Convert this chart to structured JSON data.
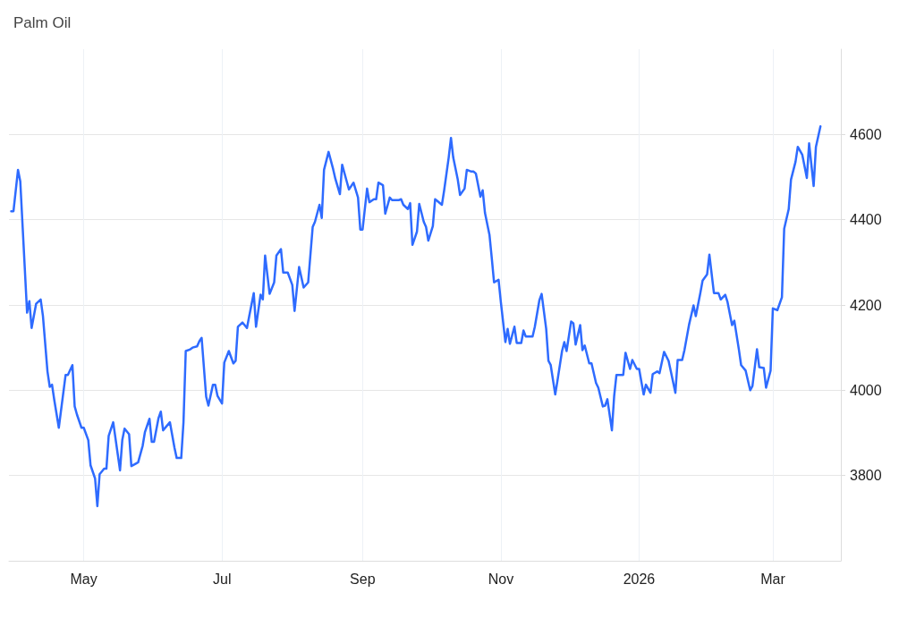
{
  "chart_data": {
    "type": "line",
    "title": "Palm Oil",
    "x": [
      "2025-03-30",
      "2025-03-31",
      "2025-04-02",
      "2025-04-03",
      "2025-04-06",
      "2025-04-07",
      "2025-04-08",
      "2025-04-10",
      "2025-04-12",
      "2025-04-13",
      "2025-04-15",
      "2025-04-16",
      "2025-04-17",
      "2025-04-18",
      "2025-04-20",
      "2025-04-23",
      "2025-04-24",
      "2025-04-26",
      "2025-04-27",
      "2025-04-28",
      "2025-04-30",
      "2025-05-01",
      "2025-05-03",
      "2025-05-04",
      "2025-05-06",
      "2025-05-07",
      "2025-05-08",
      "2025-05-10",
      "2025-05-11",
      "2025-05-12",
      "2025-05-14",
      "2025-05-17",
      "2025-05-18",
      "2025-05-19",
      "2025-05-21",
      "2025-05-22",
      "2025-05-24",
      "2025-05-25",
      "2025-05-27",
      "2025-05-28",
      "2025-05-30",
      "2025-05-31",
      "2025-06-01",
      "2025-06-03",
      "2025-06-04",
      "2025-06-05",
      "2025-06-08",
      "2025-06-10",
      "2025-06-11",
      "2025-06-13",
      "2025-06-14",
      "2025-06-15",
      "2025-06-17",
      "2025-06-18",
      "2025-06-20",
      "2025-06-21",
      "2025-06-22",
      "2025-06-24",
      "2025-06-25",
      "2025-06-27",
      "2025-06-28",
      "2025-06-29",
      "2025-07-01",
      "2025-07-02",
      "2025-07-04",
      "2025-07-06",
      "2025-07-07",
      "2025-07-08",
      "2025-07-10",
      "2025-07-12",
      "2025-07-13",
      "2025-07-15",
      "2025-07-16",
      "2025-07-18",
      "2025-07-19",
      "2025-07-20",
      "2025-07-22",
      "2025-07-24",
      "2025-07-25",
      "2025-07-27",
      "2025-07-28",
      "2025-07-30",
      "2025-08-01",
      "2025-08-02",
      "2025-08-04",
      "2025-08-06",
      "2025-08-08",
      "2025-08-10",
      "2025-08-11",
      "2025-08-13",
      "2025-08-14",
      "2025-08-15",
      "2025-08-17",
      "2025-08-19",
      "2025-08-20",
      "2025-08-22",
      "2025-08-23",
      "2025-08-25",
      "2025-08-26",
      "2025-08-28",
      "2025-08-30",
      "2025-08-31",
      "2025-09-01",
      "2025-09-03",
      "2025-09-04",
      "2025-09-06",
      "2025-09-07",
      "2025-09-08",
      "2025-09-10",
      "2025-09-11",
      "2025-09-13",
      "2025-09-14",
      "2025-09-17",
      "2025-09-18",
      "2025-09-19",
      "2025-09-21",
      "2025-09-22",
      "2025-09-23",
      "2025-09-25",
      "2025-09-26",
      "2025-09-28",
      "2025-09-29",
      "2025-09-30",
      "2025-10-02",
      "2025-10-03",
      "2025-10-04",
      "2025-10-06",
      "2025-10-07",
      "2025-10-09",
      "2025-10-10",
      "2025-10-11",
      "2025-10-13",
      "2025-10-14",
      "2025-10-16",
      "2025-10-17",
      "2025-10-19",
      "2025-10-20",
      "2025-10-21",
      "2025-10-23",
      "2025-10-24",
      "2025-10-25",
      "2025-10-27",
      "2025-10-28",
      "2025-10-29",
      "2025-10-31",
      "2025-11-01",
      "2025-11-03",
      "2025-11-04",
      "2025-11-05",
      "2025-11-07",
      "2025-11-08",
      "2025-11-10",
      "2025-11-11",
      "2025-11-12",
      "2025-11-15",
      "2025-11-16",
      "2025-11-18",
      "2025-11-19",
      "2025-11-21",
      "2025-11-22",
      "2025-11-23",
      "2025-11-25",
      "2025-11-26",
      "2025-11-28",
      "2025-11-29",
      "2025-11-30",
      "2025-12-02",
      "2025-12-03",
      "2025-12-04",
      "2025-12-06",
      "2025-12-07",
      "2025-12-08",
      "2025-12-10",
      "2025-12-11",
      "2025-12-13",
      "2025-12-14",
      "2025-12-16",
      "2025-12-17",
      "2025-12-18",
      "2025-12-20",
      "2025-12-21",
      "2025-12-22",
      "2025-12-25",
      "2025-12-26",
      "2025-12-28",
      "2025-12-29",
      "2025-12-31",
      "2026-01-01",
      "2026-01-03",
      "2026-01-04",
      "2026-01-06",
      "2026-01-07",
      "2026-01-09",
      "2026-01-10",
      "2026-01-12",
      "2026-01-14",
      "2026-01-15",
      "2026-01-17",
      "2026-01-18",
      "2026-01-20",
      "2026-01-21",
      "2026-01-23",
      "2026-01-25",
      "2026-01-26",
      "2026-01-28",
      "2026-01-29",
      "2026-01-31",
      "2026-02-01",
      "2026-02-03",
      "2026-02-05",
      "2026-02-06",
      "2026-02-08",
      "2026-02-09",
      "2026-02-11",
      "2026-02-12",
      "2026-02-14",
      "2026-02-15",
      "2026-02-17",
      "2026-02-19",
      "2026-02-20",
      "2026-02-22",
      "2026-02-23",
      "2026-02-25",
      "2026-02-26",
      "2026-02-28",
      "2026-03-01",
      "2026-03-03",
      "2026-03-05",
      "2026-03-06",
      "2026-03-08",
      "2026-03-09",
      "2026-03-11",
      "2026-03-12",
      "2026-03-14",
      "2026-03-16",
      "2026-03-17",
      "2026-03-19",
      "2026-03-20",
      "2026-03-22"
    ],
    "series": [
      {
        "color": "#2e6bff",
        "values": [
          4420,
          4420,
          4517,
          4490,
          4182,
          4209,
          4146,
          4203,
          4213,
          4174,
          4044,
          4008,
          4013,
          3977,
          3912,
          4036,
          4036,
          4059,
          3962,
          3943,
          3912,
          3912,
          3883,
          3824,
          3793,
          3728,
          3803,
          3816,
          3816,
          3893,
          3925,
          3812,
          3883,
          3910,
          3897,
          3822,
          3828,
          3831,
          3870,
          3902,
          3933,
          3879,
          3879,
          3935,
          3950,
          3906,
          3925,
          3866,
          3841,
          3841,
          3925,
          4092,
          4096,
          4100,
          4103,
          4115,
          4123,
          3985,
          3964,
          4013,
          4013,
          3987,
          3969,
          4065,
          4092,
          4063,
          4069,
          4149,
          4159,
          4146,
          4174,
          4228,
          4149,
          4224,
          4213,
          4316,
          4226,
          4253,
          4316,
          4331,
          4276,
          4276,
          4247,
          4186,
          4289,
          4241,
          4253,
          4383,
          4395,
          4435,
          4404,
          4517,
          4559,
          4519,
          4496,
          4460,
          4529,
          4490,
          4471,
          4487,
          4452,
          4377,
          4377,
          4473,
          4441,
          4448,
          4448,
          4487,
          4481,
          4414,
          4452,
          4446,
          4446,
          4448,
          4435,
          4425,
          4439,
          4341,
          4372,
          4437,
          4395,
          4383,
          4351,
          4385,
          4448,
          4444,
          4435,
          4469,
          4546,
          4592,
          4546,
          4494,
          4458,
          4473,
          4517,
          4513,
          4513,
          4508,
          4454,
          4469,
          4416,
          4364,
          4310,
          4253,
          4259,
          4207,
          4113,
          4144,
          4109,
          4149,
          4111,
          4111,
          4140,
          4126,
          4126,
          4149,
          4211,
          4226,
          4144,
          4069,
          4059,
          3990,
          4023,
          4092,
          4113,
          4092,
          4161,
          4157,
          4107,
          4153,
          4094,
          4105,
          4063,
          4063,
          4017,
          4006,
          3962,
          3964,
          3979,
          3906,
          3987,
          4036,
          4036,
          4088,
          4050,
          4071,
          4050,
          4050,
          3990,
          4013,
          3994,
          4038,
          4044,
          4040,
          4090,
          4069,
          4044,
          3994,
          4071,
          4071,
          4094,
          4153,
          4199,
          4174,
          4228,
          4257,
          4272,
          4318,
          4228,
          4228,
          4213,
          4224,
          4207,
          4153,
          4163,
          4096,
          4059,
          4046,
          4000,
          4010,
          4096,
          4054,
          4052,
          4006,
          4046,
          4192,
          4188,
          4218,
          4379,
          4425,
          4494,
          4536,
          4571,
          4552,
          4498,
          4579,
          4479,
          4571,
          4619
        ]
      }
    ],
    "xlim": [
      "2025-03-29",
      "2026-03-31"
    ],
    "xticks": [
      {
        "value": "2025-05-01",
        "label": "May"
      },
      {
        "value": "2025-07-01",
        "label": "Jul"
      },
      {
        "value": "2025-09-01",
        "label": "Sep"
      },
      {
        "value": "2025-11-01",
        "label": "Nov"
      },
      {
        "value": "2026-01-01",
        "label": "2026"
      },
      {
        "value": "2026-03-01",
        "label": "Mar"
      }
    ],
    "ylim": [
      3600,
      4800
    ],
    "yticks": [
      3800,
      4000,
      4200,
      4400,
      4600
    ],
    "grid": true,
    "marker": "none",
    "line_style": "solid"
  }
}
